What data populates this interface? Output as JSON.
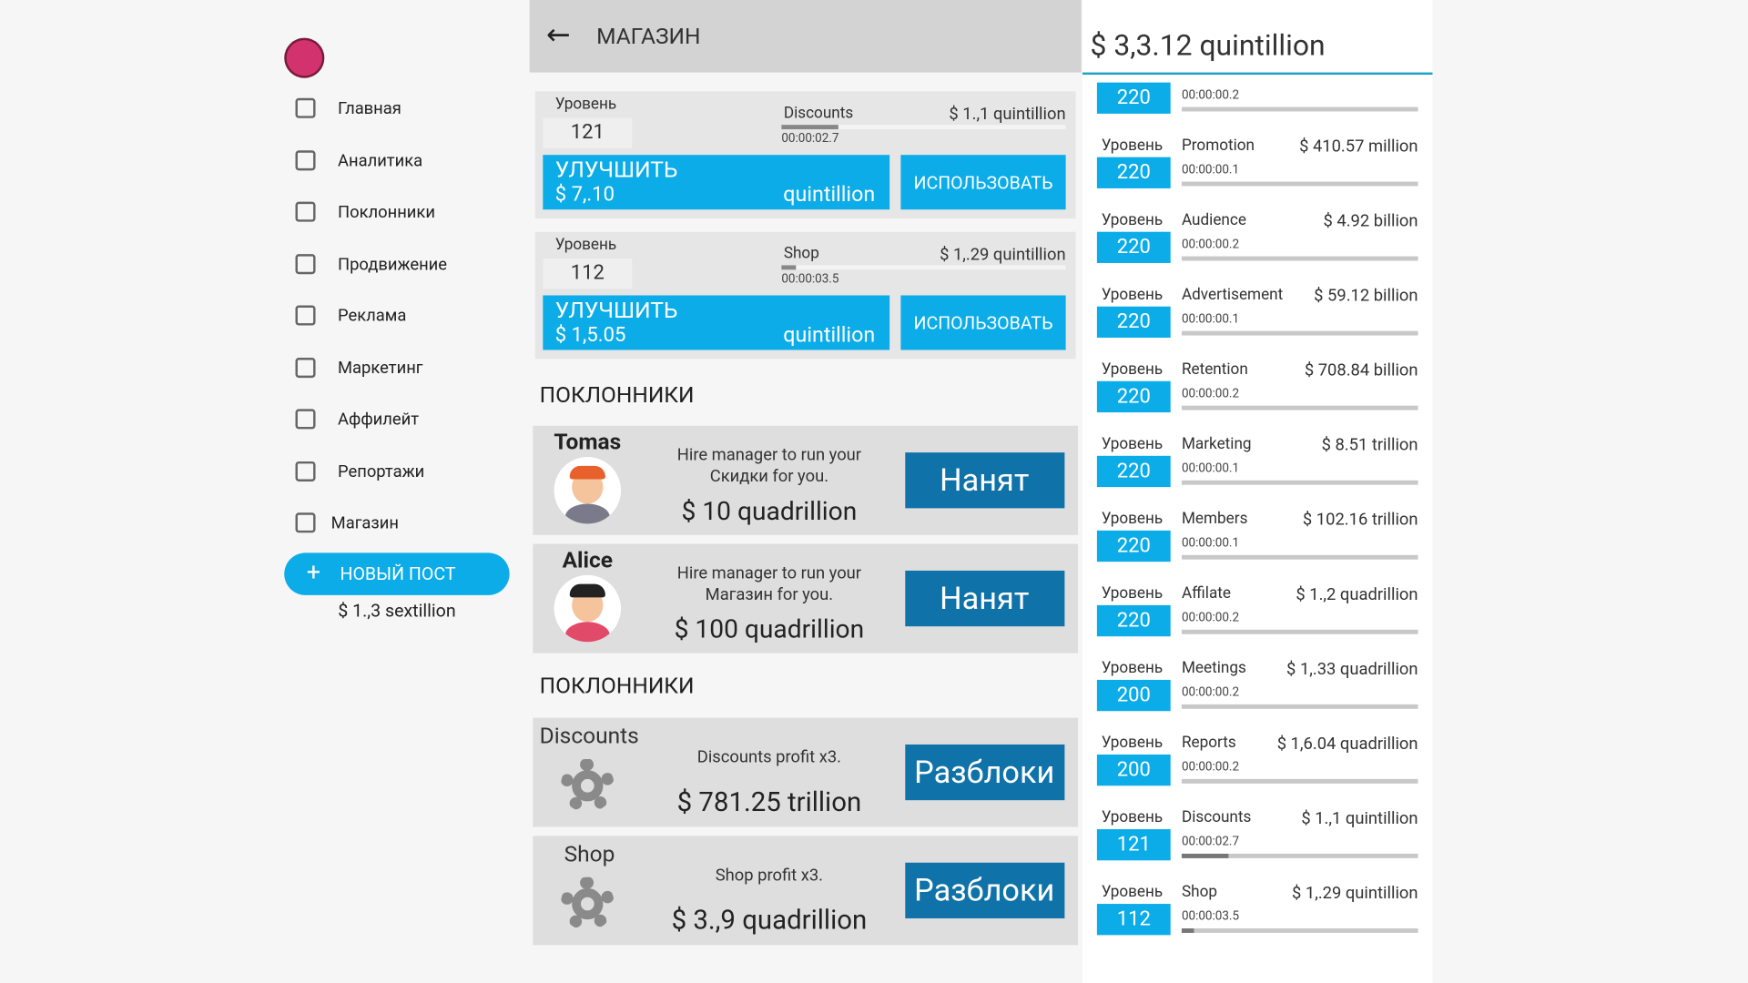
{
  "sidebar": {
    "nav": [
      "Главная",
      "Аналитика",
      "Поклонники",
      "Продвижение",
      "Реклама",
      "Маркетинг",
      "Аффилейт",
      "Репортажи",
      "Магазин"
    ],
    "new_post": "НОВЫЙ ПОСТ",
    "balance": "$ 1.,3  sextillion"
  },
  "header": {
    "title": "МАГАЗИН"
  },
  "upgrades": [
    {
      "level_label": "Уровень",
      "level": "121",
      "name": "Discounts",
      "price": "$ 1.,1 quintillion",
      "timer": "00:00:02.7",
      "progress": 0.2,
      "upgrade": "УЛУЧШИТЬ",
      "cost": "$ 7,.10",
      "unit": "quintillion",
      "use": "ИСПОЛЬЗОВАТЬ"
    },
    {
      "level_label": "Уровень",
      "level": "112",
      "name": "Shop",
      "price": "$ 1,.29 quintillion",
      "timer": "00:00:03.5",
      "progress": 0.05,
      "upgrade": "УЛУЧШИТЬ",
      "cost": "$ 1,5.05",
      "unit": "quintillion",
      "use": "ИСПОЛЬЗОВАТЬ"
    }
  ],
  "managers_title": "ПОКЛОННИКИ",
  "managers": [
    {
      "name": "Tomas",
      "desc": [
        "Hire manager to run your",
        "Скидки for you."
      ],
      "price": "$ 10 quadrillion",
      "button": "Нанят"
    },
    {
      "name": "Alice",
      "desc": [
        "Hire manager to run your",
        "Магазин for you."
      ],
      "price": "$ 100 quadrillion",
      "button": "Нанят"
    }
  ],
  "unlocks_title": "ПОКЛОННИКИ",
  "unlocks": [
    {
      "name": "Discounts",
      "desc": "Discounts profit x3.",
      "price": "$ 781.25 trillion",
      "button": "Разблоки"
    },
    {
      "name": "Shop",
      "desc": "Shop profit x3.",
      "price": "$ 3.,9 quadrillion",
      "button": "Разблоки"
    }
  ],
  "total": "$ 3,3.12 quintillion",
  "rows": [
    {
      "level": "220",
      "timer": "00:00:00.2",
      "progress": 0
    },
    {
      "level_label": "Уровень",
      "level": "220",
      "name": "Promotion",
      "value": "$ 410.57 million",
      "timer": "00:00:00.1",
      "progress": 0
    },
    {
      "level_label": "Уровень",
      "level": "220",
      "name": "Audience",
      "value": "$ 4.92 billion",
      "timer": "00:00:00.2",
      "progress": 0
    },
    {
      "level_label": "Уровень",
      "level": "220",
      "name": "Advertisement",
      "value": "$ 59.12 billion",
      "timer": "00:00:00.1",
      "progress": 0
    },
    {
      "level_label": "Уровень",
      "level": "220",
      "name": "Retention",
      "value": "$ 708.84 billion",
      "timer": "00:00:00.2",
      "progress": 0
    },
    {
      "level_label": "Уровень",
      "level": "220",
      "name": "Marketing",
      "value": "$ 8.51 trillion",
      "timer": "00:00:00.1",
      "progress": 0
    },
    {
      "level_label": "Уровень",
      "level": "220",
      "name": "Members",
      "value": "$ 102.16 trillion",
      "timer": "00:00:00.1",
      "progress": 0
    },
    {
      "level_label": "Уровень",
      "level": "220",
      "name": "Affilate",
      "value": "$ 1.,2 quadrillion",
      "timer": "00:00:00.2",
      "progress": 0
    },
    {
      "level_label": "Уровень",
      "level": "200",
      "name": "Meetings",
      "value": "$ 1,.33 quadrillion",
      "timer": "00:00:00.2",
      "progress": 0
    },
    {
      "level_label": "Уровень",
      "level": "200",
      "name": "Reports",
      "value": "$ 1,6.04 quadrillion",
      "timer": "00:00:00.2",
      "progress": 0
    },
    {
      "level_label": "Уровень",
      "level": "121",
      "name": "Discounts",
      "value": "$ 1.,1 quintillion",
      "timer": "00:00:02.7",
      "progress": 0.2
    },
    {
      "level_label": "Уровень",
      "level": "112",
      "name": "Shop",
      "value": "$ 1,.29 quintillion",
      "timer": "00:00:03.5",
      "progress": 0.05
    }
  ]
}
